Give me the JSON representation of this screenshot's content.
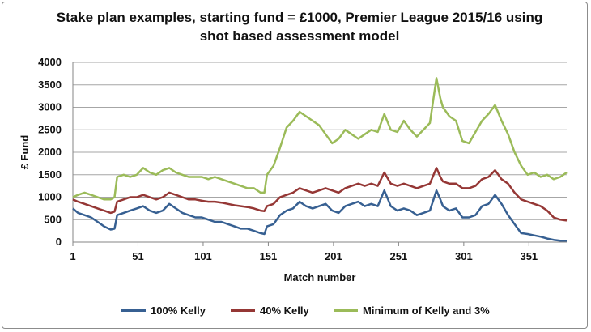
{
  "chart_data": {
    "type": "line",
    "title": "Stake plan examples, starting fund = £1000, Premier League 2015/16 using shot based assessment model",
    "title_line1": "Stake plan examples, starting fund = £1000, Premier League 2015/16 using",
    "title_line2": "shot based assessment model",
    "xlabel": "Match number",
    "ylabel": "£ Fund",
    "xlim": [
      1,
      380
    ],
    "ylim": [
      0,
      4000
    ],
    "x_ticks": [
      "1",
      "51",
      "101",
      "151",
      "201",
      "251",
      "301",
      "351"
    ],
    "y_ticks": [
      "0",
      "500",
      "1000",
      "1500",
      "2000",
      "2500",
      "3000",
      "3500",
      "4000"
    ],
    "grid": "horizontal",
    "legend_position": "bottom",
    "series": [
      {
        "name": "100% Kelly",
        "color": "#376092",
        "points": [
          [
            1,
            750
          ],
          [
            5,
            650
          ],
          [
            10,
            600
          ],
          [
            15,
            550
          ],
          [
            20,
            450
          ],
          [
            25,
            350
          ],
          [
            30,
            280
          ],
          [
            33,
            300
          ],
          [
            35,
            600
          ],
          [
            40,
            650
          ],
          [
            45,
            700
          ],
          [
            50,
            750
          ],
          [
            55,
            800
          ],
          [
            60,
            700
          ],
          [
            65,
            650
          ],
          [
            70,
            700
          ],
          [
            75,
            850
          ],
          [
            80,
            750
          ],
          [
            85,
            650
          ],
          [
            90,
            600
          ],
          [
            95,
            550
          ],
          [
            100,
            550
          ],
          [
            105,
            500
          ],
          [
            110,
            450
          ],
          [
            115,
            450
          ],
          [
            120,
            400
          ],
          [
            125,
            350
          ],
          [
            130,
            300
          ],
          [
            135,
            300
          ],
          [
            140,
            250
          ],
          [
            145,
            200
          ],
          [
            148,
            180
          ],
          [
            150,
            350
          ],
          [
            155,
            400
          ],
          [
            160,
            600
          ],
          [
            165,
            700
          ],
          [
            170,
            750
          ],
          [
            175,
            900
          ],
          [
            180,
            800
          ],
          [
            185,
            750
          ],
          [
            190,
            800
          ],
          [
            195,
            850
          ],
          [
            200,
            700
          ],
          [
            205,
            650
          ],
          [
            210,
            800
          ],
          [
            215,
            850
          ],
          [
            220,
            900
          ],
          [
            225,
            800
          ],
          [
            230,
            850
          ],
          [
            235,
            800
          ],
          [
            240,
            1150
          ],
          [
            245,
            800
          ],
          [
            250,
            700
          ],
          [
            255,
            750
          ],
          [
            260,
            700
          ],
          [
            265,
            600
          ],
          [
            270,
            650
          ],
          [
            275,
            700
          ],
          [
            280,
            1150
          ],
          [
            283,
            950
          ],
          [
            285,
            800
          ],
          [
            290,
            700
          ],
          [
            295,
            750
          ],
          [
            300,
            550
          ],
          [
            305,
            550
          ],
          [
            310,
            600
          ],
          [
            315,
            800
          ],
          [
            320,
            850
          ],
          [
            325,
            1050
          ],
          [
            330,
            850
          ],
          [
            335,
            600
          ],
          [
            340,
            400
          ],
          [
            345,
            200
          ],
          [
            350,
            180
          ],
          [
            355,
            150
          ],
          [
            360,
            120
          ],
          [
            365,
            80
          ],
          [
            370,
            50
          ],
          [
            375,
            30
          ],
          [
            380,
            30
          ]
        ]
      },
      {
        "name": "40% Kelly",
        "color": "#953735",
        "points": [
          [
            1,
            950
          ],
          [
            5,
            900
          ],
          [
            10,
            850
          ],
          [
            15,
            800
          ],
          [
            20,
            750
          ],
          [
            25,
            700
          ],
          [
            30,
            650
          ],
          [
            33,
            680
          ],
          [
            35,
            900
          ],
          [
            40,
            950
          ],
          [
            45,
            1000
          ],
          [
            50,
            1000
          ],
          [
            55,
            1050
          ],
          [
            60,
            1000
          ],
          [
            65,
            950
          ],
          [
            70,
            1000
          ],
          [
            75,
            1100
          ],
          [
            80,
            1050
          ],
          [
            85,
            1000
          ],
          [
            90,
            950
          ],
          [
            95,
            950
          ],
          [
            100,
            920
          ],
          [
            105,
            900
          ],
          [
            110,
            900
          ],
          [
            115,
            880
          ],
          [
            120,
            850
          ],
          [
            125,
            820
          ],
          [
            130,
            800
          ],
          [
            135,
            780
          ],
          [
            140,
            750
          ],
          [
            145,
            700
          ],
          [
            148,
            690
          ],
          [
            150,
            800
          ],
          [
            155,
            850
          ],
          [
            160,
            1000
          ],
          [
            165,
            1050
          ],
          [
            170,
            1100
          ],
          [
            175,
            1200
          ],
          [
            180,
            1150
          ],
          [
            185,
            1100
          ],
          [
            190,
            1150
          ],
          [
            195,
            1200
          ],
          [
            200,
            1150
          ],
          [
            205,
            1100
          ],
          [
            210,
            1200
          ],
          [
            215,
            1250
          ],
          [
            220,
            1300
          ],
          [
            225,
            1250
          ],
          [
            230,
            1300
          ],
          [
            235,
            1250
          ],
          [
            240,
            1550
          ],
          [
            245,
            1300
          ],
          [
            250,
            1250
          ],
          [
            255,
            1300
          ],
          [
            260,
            1250
          ],
          [
            265,
            1200
          ],
          [
            270,
            1250
          ],
          [
            275,
            1300
          ],
          [
            280,
            1650
          ],
          [
            283,
            1450
          ],
          [
            285,
            1350
          ],
          [
            290,
            1300
          ],
          [
            295,
            1300
          ],
          [
            300,
            1200
          ],
          [
            305,
            1200
          ],
          [
            310,
            1250
          ],
          [
            315,
            1400
          ],
          [
            320,
            1450
          ],
          [
            325,
            1600
          ],
          [
            330,
            1400
          ],
          [
            335,
            1300
          ],
          [
            340,
            1100
          ],
          [
            345,
            950
          ],
          [
            350,
            900
          ],
          [
            355,
            850
          ],
          [
            360,
            800
          ],
          [
            365,
            700
          ],
          [
            370,
            550
          ],
          [
            375,
            500
          ],
          [
            380,
            480
          ]
        ]
      },
      {
        "name": "Minimum of Kelly and 3%",
        "color": "#9bbb59",
        "points": [
          [
            1,
            1000
          ],
          [
            5,
            1050
          ],
          [
            10,
            1100
          ],
          [
            15,
            1050
          ],
          [
            20,
            1000
          ],
          [
            25,
            950
          ],
          [
            30,
            950
          ],
          [
            33,
            1000
          ],
          [
            35,
            1450
          ],
          [
            40,
            1500
          ],
          [
            45,
            1450
          ],
          [
            50,
            1500
          ],
          [
            55,
            1650
          ],
          [
            60,
            1550
          ],
          [
            65,
            1500
          ],
          [
            70,
            1600
          ],
          [
            75,
            1650
          ],
          [
            80,
            1550
          ],
          [
            85,
            1500
          ],
          [
            90,
            1450
          ],
          [
            95,
            1450
          ],
          [
            100,
            1450
          ],
          [
            105,
            1400
          ],
          [
            110,
            1450
          ],
          [
            115,
            1400
          ],
          [
            120,
            1350
          ],
          [
            125,
            1300
          ],
          [
            130,
            1250
          ],
          [
            135,
            1200
          ],
          [
            140,
            1200
          ],
          [
            145,
            1100
          ],
          [
            148,
            1100
          ],
          [
            150,
            1500
          ],
          [
            155,
            1700
          ],
          [
            160,
            2100
          ],
          [
            165,
            2550
          ],
          [
            170,
            2700
          ],
          [
            175,
            2900
          ],
          [
            180,
            2800
          ],
          [
            185,
            2700
          ],
          [
            190,
            2600
          ],
          [
            195,
            2400
          ],
          [
            200,
            2200
          ],
          [
            205,
            2300
          ],
          [
            210,
            2500
          ],
          [
            215,
            2400
          ],
          [
            220,
            2300
          ],
          [
            225,
            2400
          ],
          [
            230,
            2500
          ],
          [
            235,
            2450
          ],
          [
            240,
            2850
          ],
          [
            245,
            2500
          ],
          [
            250,
            2450
          ],
          [
            255,
            2700
          ],
          [
            260,
            2500
          ],
          [
            265,
            2350
          ],
          [
            270,
            2500
          ],
          [
            275,
            2650
          ],
          [
            280,
            3650
          ],
          [
            283,
            3200
          ],
          [
            285,
            3000
          ],
          [
            290,
            2800
          ],
          [
            295,
            2700
          ],
          [
            300,
            2250
          ],
          [
            305,
            2200
          ],
          [
            310,
            2450
          ],
          [
            315,
            2700
          ],
          [
            320,
            2850
          ],
          [
            325,
            3050
          ],
          [
            330,
            2700
          ],
          [
            335,
            2400
          ],
          [
            340,
            2000
          ],
          [
            345,
            1700
          ],
          [
            350,
            1500
          ],
          [
            355,
            1550
          ],
          [
            360,
            1450
          ],
          [
            365,
            1500
          ],
          [
            370,
            1400
          ],
          [
            375,
            1450
          ],
          [
            380,
            1550
          ]
        ]
      }
    ]
  }
}
